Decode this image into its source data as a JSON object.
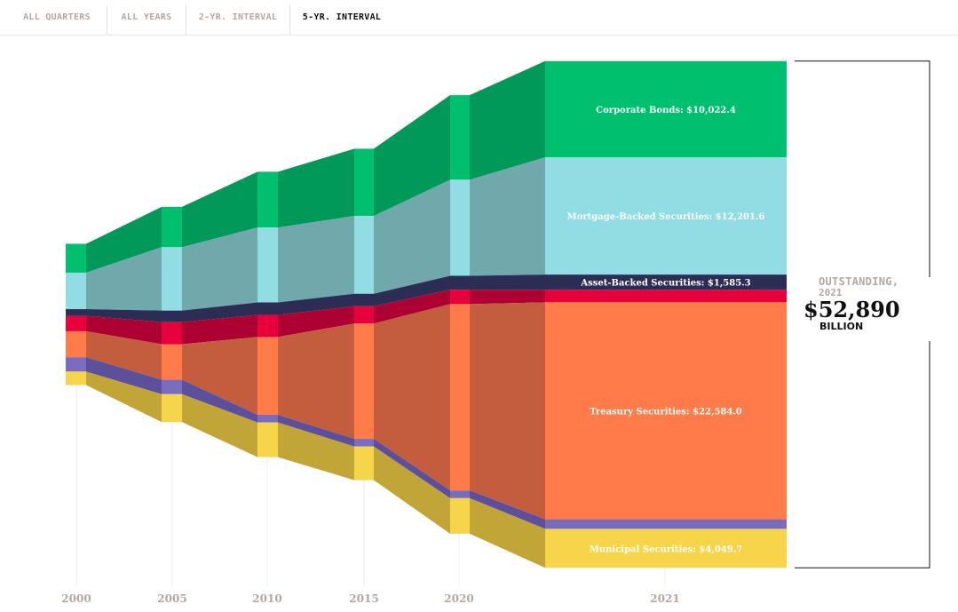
{
  "tabs": [
    {
      "label": "ALL QUARTERS",
      "active": false
    },
    {
      "label": "ALL YEARS",
      "active": false
    },
    {
      "label": "2-YR. INTERVAL",
      "active": false
    },
    {
      "label": "5-YR. INTERVAL",
      "active": true
    }
  ],
  "total": {
    "label": "OUTSTANDING,",
    "year": "2021",
    "value": "$52,890",
    "unit": "BILLION"
  },
  "chart_data": {
    "type": "area",
    "x": [
      "2000",
      "2005",
      "2010",
      "2015",
      "2020",
      "2021"
    ],
    "stack_order": "top-to-bottom",
    "series": [
      {
        "key": "corporate",
        "color": "#00bf6f",
        "flow_color": "#00995a",
        "values": [
          3000,
          4200,
          5800,
          7000,
          8800,
          10022.4
        ],
        "label": "Corporate Bonds: $10,022.4"
      },
      {
        "key": "mbs",
        "color": "#92dce3",
        "flow_color": "#70a8ab",
        "values": [
          3800,
          6600,
          7800,
          8100,
          10000,
          12201.6
        ],
        "label": "Mortgage-Backed Securities: $12,201.6"
      },
      {
        "key": "abs",
        "color": "#2b2d55",
        "flow_color": "#2b2d55",
        "values": [
          700,
          1200,
          1300,
          1300,
          1450,
          1585.3
        ],
        "label": "Asset-Backed Securities: $1,585.3"
      },
      {
        "key": "money",
        "color": "#e8003d",
        "flow_color": "#ad0033",
        "values": [
          1600,
          2300,
          2300,
          1800,
          1500,
          1300
        ],
        "label": ""
      },
      {
        "key": "treasury",
        "color": "#ff7b4a",
        "flow_color": "#c45d3d",
        "values": [
          2700,
          3700,
          8100,
          12000,
          19400,
          22584
        ],
        "label": "Treasury Securities: $22,584.0"
      },
      {
        "key": "agency",
        "color": "#7b6dbe",
        "flow_color": "#5c4f9b",
        "values": [
          1500,
          1500,
          800,
          800,
          800,
          1000
        ],
        "label": ""
      },
      {
        "key": "municipal",
        "color": "#f7d54a",
        "flow_color": "#c2a537",
        "values": [
          1400,
          2900,
          3600,
          3500,
          3700,
          4049.7
        ],
        "label": "Municipal Securities: $4,049.7"
      }
    ]
  }
}
